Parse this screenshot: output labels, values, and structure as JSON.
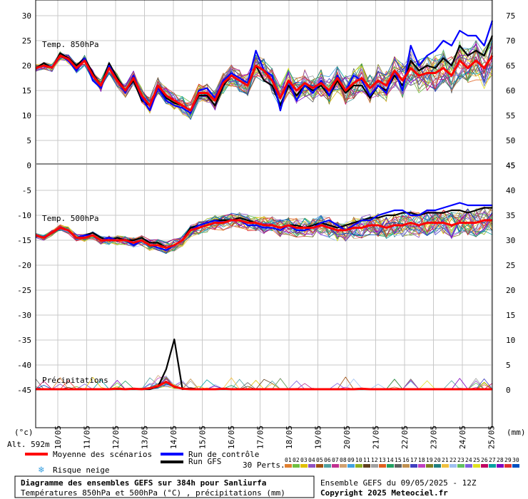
{
  "chart_data": [
    {
      "type": "line",
      "panel": "top",
      "title": "Temp. 850hPa",
      "y_left_ticks": [
        "30",
        "25",
        "20",
        "15",
        "10",
        "5",
        "0"
      ],
      "y_right_ticks": [
        "75",
        "70",
        "65",
        "60",
        "55",
        "50",
        "45"
      ],
      "ylim": [
        0,
        33
      ],
      "series": [
        {
          "name": "Moyenne des scénarios",
          "color": "#ff0000",
          "values": [
            19.5,
            20,
            19.6,
            22,
            21.3,
            19.5,
            21,
            18,
            16,
            19.5,
            17,
            15,
            17.5,
            14,
            12,
            16,
            14,
            13,
            12,
            11,
            14.5,
            14.5,
            13,
            16.5,
            18,
            17,
            16,
            20,
            19,
            17,
            13.5,
            17,
            15,
            16.5,
            15.5,
            16.5,
            15,
            17.5,
            15,
            16.5,
            17.5,
            15.5,
            17,
            16,
            19,
            17,
            19.5,
            18,
            18.5,
            18.5,
            19.5,
            18,
            21,
            19.5,
            21,
            19.5,
            22
          ]
        },
        {
          "name": "Run de contrôle",
          "color": "#0000ff",
          "values": [
            19.5,
            20,
            19.5,
            22,
            21,
            19,
            21.5,
            17,
            15.5,
            20,
            17,
            14.5,
            18,
            13.5,
            11,
            15.5,
            13,
            12,
            11.5,
            10.5,
            15,
            15.5,
            13.5,
            17,
            18.5,
            17.5,
            16.5,
            23,
            19,
            18,
            11,
            17,
            13,
            16,
            14.5,
            17,
            14,
            18,
            15,
            18,
            17,
            14,
            16,
            14.5,
            19,
            15,
            24,
            20,
            22,
            23,
            25,
            24,
            27,
            26,
            26,
            24,
            29
          ]
        },
        {
          "name": "Run GFS",
          "color": "#000000",
          "values": [
            19.5,
            20.5,
            19.5,
            22.5,
            21.5,
            20,
            21.5,
            18.5,
            16,
            20.5,
            17.5,
            15,
            17,
            13,
            12,
            16,
            13.5,
            12.5,
            12,
            11,
            14,
            14,
            12,
            16,
            18,
            17,
            16,
            20,
            17,
            16,
            12,
            16,
            14,
            16,
            15,
            16,
            14,
            17,
            14.5,
            16,
            16,
            13.5,
            16,
            15,
            18,
            16,
            21,
            19,
            20,
            19.5,
            21.5,
            20,
            24,
            22,
            23,
            22,
            26
          ]
        }
      ]
    },
    {
      "type": "line",
      "panel": "middle",
      "title": "Temp. 500hPa",
      "y_left_ticks": [
        "-5",
        "-10",
        "-15",
        "-20",
        "-25",
        "-30",
        "-35",
        "-40",
        "-45"
      ],
      "y_right_ticks": [
        "45",
        "40",
        "35",
        "30",
        "25",
        "20",
        "15",
        "10",
        "5",
        "0"
      ],
      "series": [
        {
          "name": "Moyenne des scénarios",
          "color": "#ff0000",
          "values": [
            -14,
            -14.5,
            -13.5,
            -12.5,
            -13,
            -14.5,
            -14.5,
            -14,
            -15,
            -15,
            -15,
            -15,
            -15.5,
            -15,
            -16,
            -16,
            -16.5,
            -16,
            -15,
            -13,
            -12.5,
            -12,
            -11.5,
            -11.5,
            -11,
            -11,
            -11.5,
            -11.5,
            -12,
            -12,
            -12.5,
            -12,
            -12.5,
            -12.5,
            -12.5,
            -12,
            -12.5,
            -13,
            -13,
            -12.5,
            -12.5,
            -12,
            -12,
            -12.5,
            -12,
            -12,
            -11.5,
            -12,
            -11.5,
            -11.5,
            -11.5,
            -12,
            -11.5,
            -11.5,
            -11.5,
            -11,
            -11
          ]
        },
        {
          "name": "Run de contrôle",
          "color": "#0000ff",
          "values": [
            -14,
            -14.5,
            -13.5,
            -12.5,
            -13,
            -14.5,
            -14,
            -14,
            -15,
            -14.5,
            -15,
            -15,
            -16,
            -15,
            -16,
            -16.5,
            -17,
            -16,
            -15,
            -13,
            -12,
            -11.5,
            -11,
            -11.5,
            -11,
            -11,
            -12,
            -12,
            -12.5,
            -12.5,
            -13,
            -12,
            -13,
            -13,
            -12.5,
            -11.5,
            -11,
            -12,
            -13,
            -12,
            -11,
            -11,
            -10,
            -9.5,
            -9,
            -9,
            -10,
            -10,
            -9,
            -9,
            -8.5,
            -8,
            -7.5,
            -8,
            -8,
            -8,
            -8
          ]
        },
        {
          "name": "Run GFS",
          "color": "#000000",
          "values": [
            -14,
            -14.5,
            -13.5,
            -12.5,
            -13,
            -14.5,
            -14,
            -13.5,
            -14.5,
            -15,
            -14.5,
            -15,
            -15,
            -14.5,
            -15.5,
            -15.5,
            -16.5,
            -16,
            -15,
            -12.5,
            -12,
            -11.5,
            -11,
            -11,
            -11,
            -10.5,
            -11,
            -11.5,
            -12,
            -12,
            -12.5,
            -12,
            -12,
            -12.5,
            -12,
            -11.5,
            -12,
            -12.5,
            -12,
            -11.5,
            -11,
            -10.5,
            -10.5,
            -10,
            -10,
            -9.5,
            -9.5,
            -10,
            -9.5,
            -9.5,
            -9.5,
            -9,
            -9,
            -9.5,
            -9,
            -8.5,
            -8.5
          ]
        }
      ]
    },
    {
      "type": "line",
      "panel": "bottom",
      "title": "Précipitations",
      "unit": "(mm)",
      "series": [
        {
          "name": "Moyenne des scénarios",
          "color": "#ff0000",
          "values": [
            0,
            0,
            0,
            0,
            0,
            0,
            0,
            0,
            0,
            0,
            0.1,
            0,
            0.1,
            0,
            0.2,
            0.6,
            1.5,
            0.5,
            0.1,
            0,
            0,
            0,
            0,
            0.1,
            0,
            0,
            0,
            0,
            0,
            0,
            0,
            0,
            0,
            0,
            0,
            0,
            0,
            0,
            0,
            0,
            0.1,
            0,
            0,
            0,
            0,
            0,
            0,
            0,
            0,
            0,
            0,
            0,
            0,
            0,
            0,
            0,
            0
          ]
        },
        {
          "name": "Run GFS",
          "color": "#000000",
          "values": [
            0,
            0,
            0,
            0,
            0,
            0,
            0,
            0,
            0,
            0,
            0,
            0,
            0,
            0,
            0,
            0.5,
            4,
            10,
            0,
            0.2,
            0,
            0,
            0,
            0,
            0,
            0,
            0,
            0,
            0,
            0,
            0,
            0,
            0,
            0,
            0,
            0,
            0,
            0,
            0,
            0,
            0,
            0,
            0,
            0,
            0,
            0,
            0,
            0,
            0,
            0,
            0,
            0,
            0,
            0,
            0,
            0,
            0
          ]
        }
      ]
    }
  ],
  "x_labels": [
    "10/05",
    "11/05",
    "12/05",
    "13/05",
    "14/05",
    "15/05",
    "16/05",
    "17/05",
    "18/05",
    "19/05",
    "20/05",
    "21/05",
    "22/05",
    "23/05",
    "24/05",
    "25/05"
  ],
  "left_unit": "(°c)",
  "altitude": "Alt. 592m",
  "right_unit": "(mm)",
  "legend": {
    "mean": "Moyenne des scénarios",
    "control": "Run de contrôle",
    "gfs": "Run GFS",
    "snow": "Risque neige",
    "perts": "30 Perts.",
    "numbers": [
      "01",
      "02",
      "03",
      "04",
      "05",
      "06",
      "07",
      "08",
      "09",
      "10",
      "11",
      "12",
      "13",
      "14",
      "15",
      "16",
      "17",
      "18",
      "19",
      "20",
      "21",
      "22",
      "23",
      "24",
      "25",
      "26",
      "27",
      "28",
      "29",
      "30"
    ],
    "colors": [
      "#e08030",
      "#70c040",
      "#e0c000",
      "#9050c0",
      "#a05010",
      "#50a0a0",
      "#c03090",
      "#d0a070",
      "#40a0e0",
      "#90b020",
      "#604020",
      "#a0a0a0",
      "#e06020",
      "#20a060",
      "#606060",
      "#c09050",
      "#4040c0",
      "#c040c0",
      "#808020",
      "#208080",
      "#f0c040",
      "#a0c0f0",
      "#60c060",
      "#8060e0",
      "#e0e020",
      "#c00060",
      "#00a0a0",
      "#8000c0",
      "#e03030",
      "#0050c0"
    ]
  },
  "footer": {
    "title": "Diagramme des ensembles GEFS sur 384h pour Sanliurfa",
    "subtitle": "Températures 850hPa et 500hPa (°C) , précipitations (mm)",
    "run": "Ensemble GEFS du 09/05/2025 - 12Z",
    "copyright": "Copyright 2025 Meteociel.fr"
  }
}
